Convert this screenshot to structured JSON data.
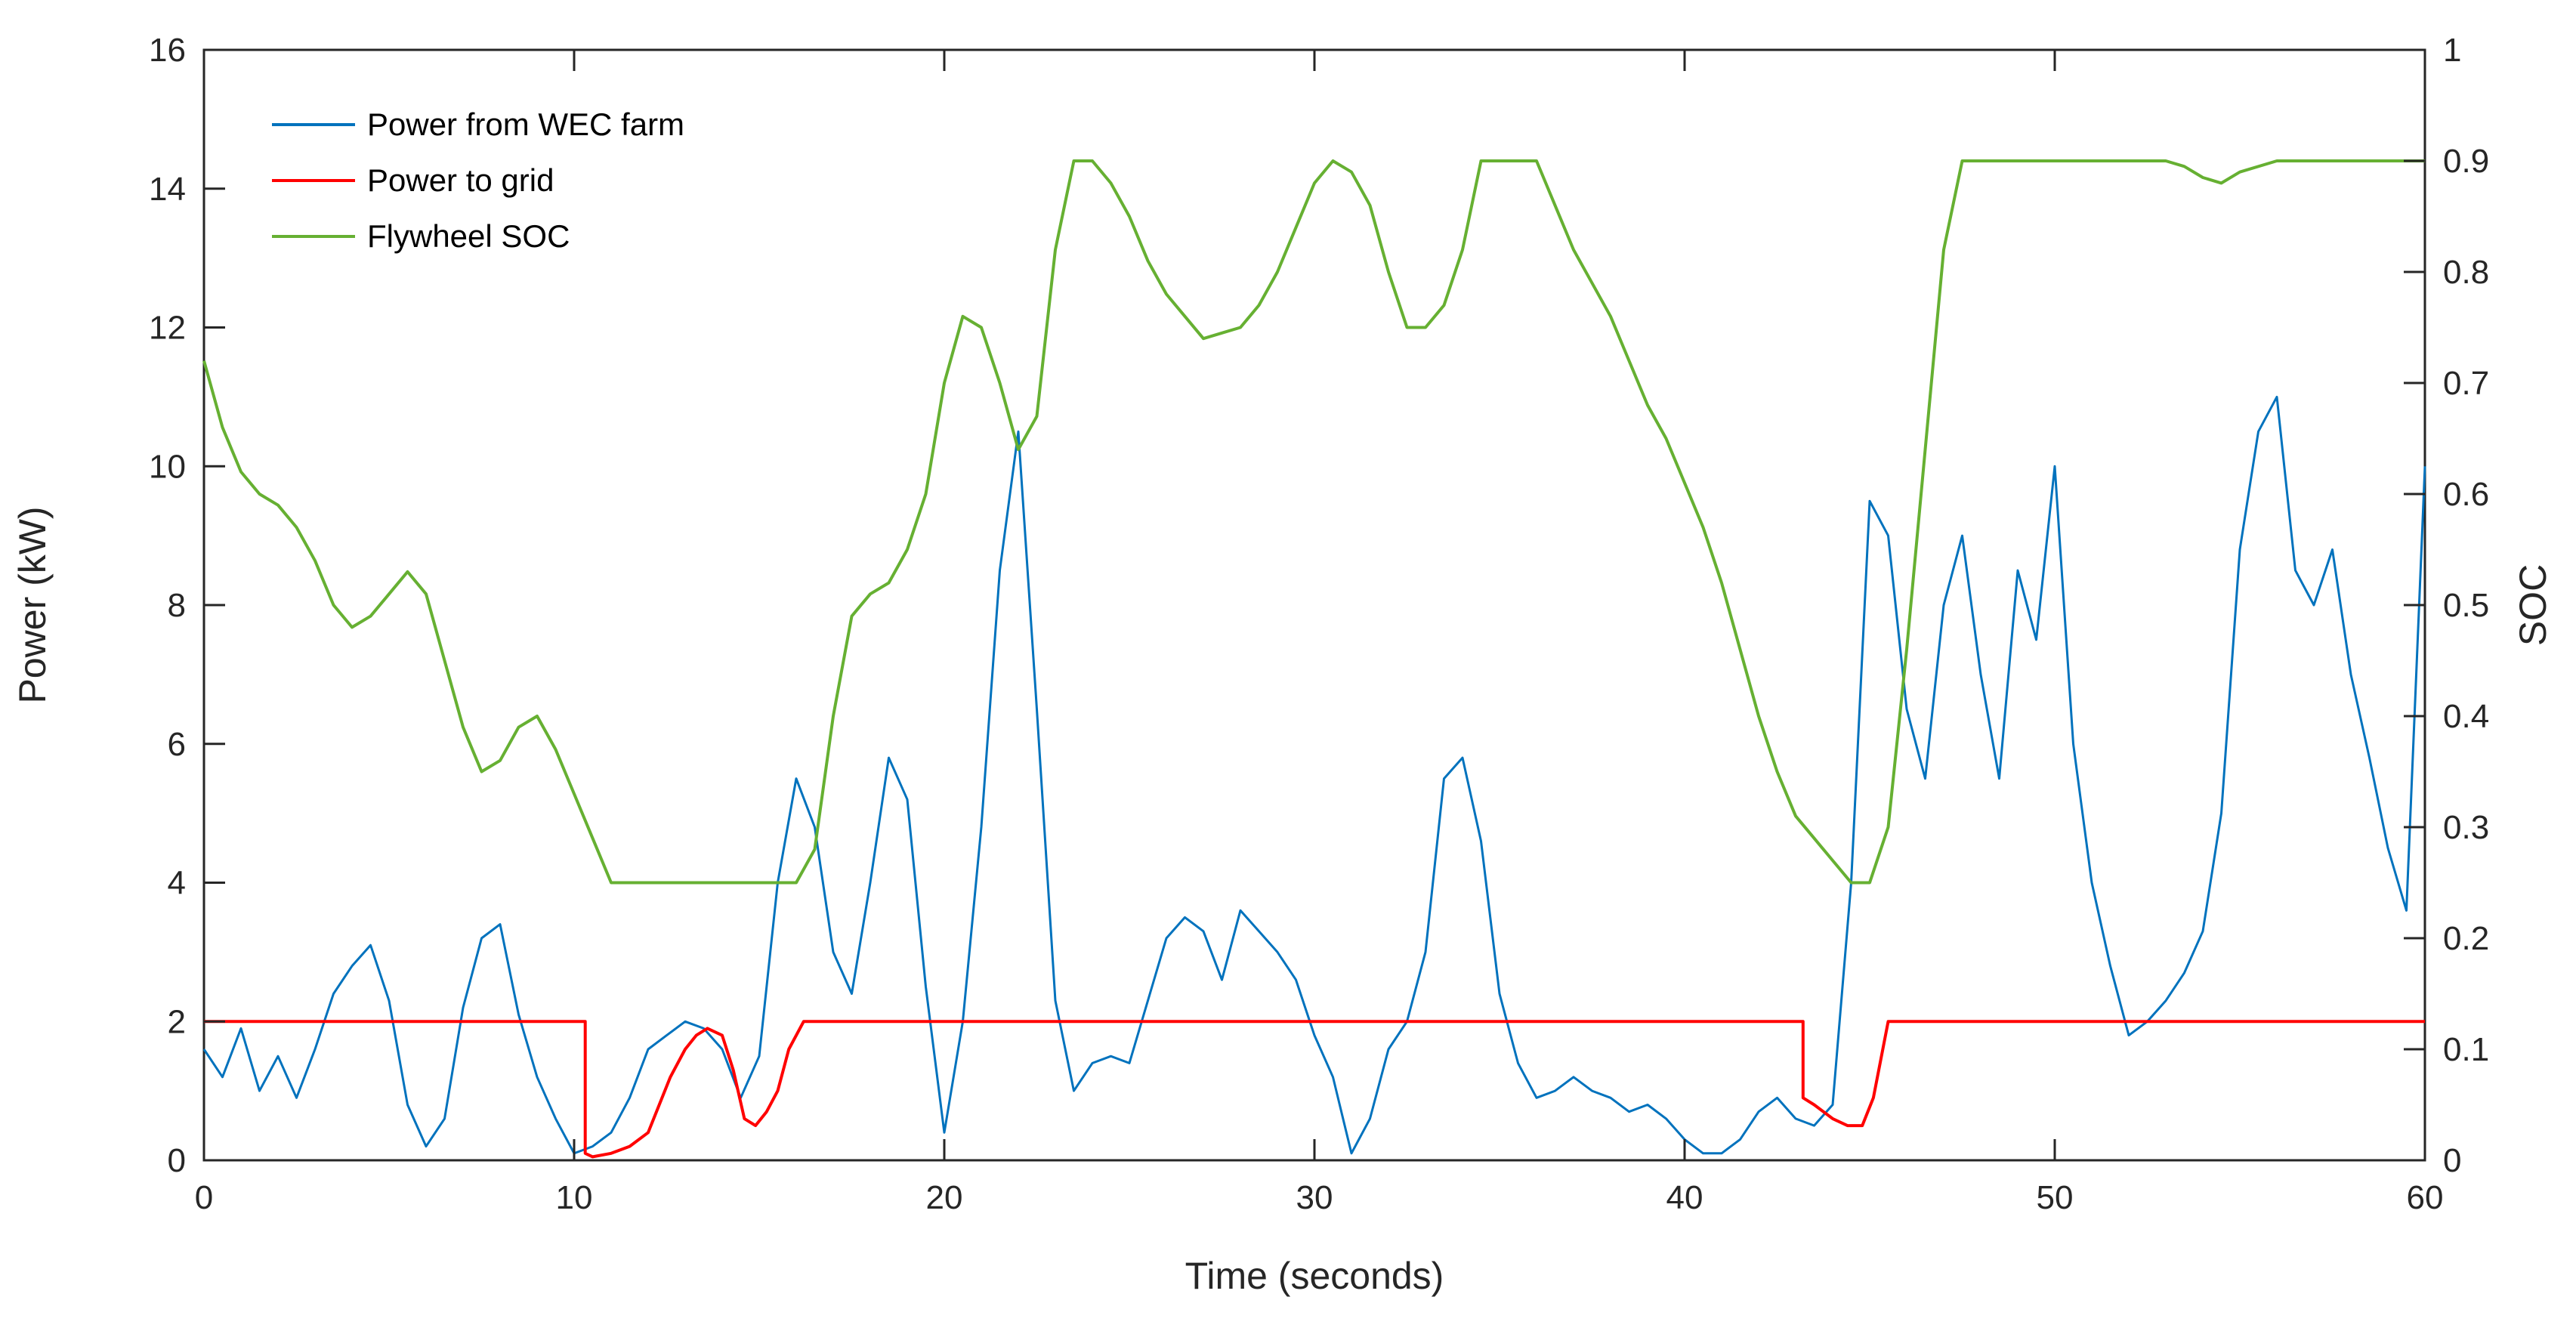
{
  "chart_data": {
    "type": "line",
    "title": "",
    "xlabel": "Time (seconds)",
    "ylabel": "Power (kW)",
    "y2label": "SOC",
    "xlim": [
      0,
      60
    ],
    "ylim": [
      0,
      16
    ],
    "y2lim": [
      0,
      1
    ],
    "xticks": [
      "0",
      "10",
      "20",
      "30",
      "40",
      "50",
      "60"
    ],
    "yticks": [
      "0",
      "2",
      "4",
      "6",
      "8",
      "10",
      "12",
      "14",
      "16"
    ],
    "y2ticks": [
      "0",
      "0.1",
      "0.2",
      "0.3",
      "0.4",
      "0.5",
      "0.6",
      "0.7",
      "0.8",
      "0.9",
      "1"
    ],
    "grid": false,
    "legend_position": "top-left",
    "colors": {
      "wec": "#0072BD",
      "grid": "#FF0000",
      "soc": "#66B032",
      "y2axis": "#66B032",
      "axis": "#262626"
    },
    "series": [
      {
        "name": "Power from WEC farm",
        "axis": "left",
        "x": [
          0,
          0.5,
          1,
          1.5,
          2,
          2.5,
          3,
          3.5,
          4,
          4.5,
          5,
          5.5,
          6,
          6.5,
          7,
          7.5,
          8,
          8.5,
          9,
          9.5,
          10,
          10.5,
          11,
          11.5,
          12,
          12.5,
          13,
          13.5,
          14,
          14.5,
          15,
          15.5,
          16,
          16.5,
          17,
          17.5,
          18,
          18.5,
          19,
          19.5,
          20,
          20.5,
          21,
          21.5,
          22,
          22.5,
          23,
          23.5,
          24,
          24.5,
          25,
          25.5,
          26,
          26.5,
          27,
          27.5,
          28,
          28.5,
          29,
          29.5,
          30,
          30.5,
          31,
          31.5,
          32,
          32.5,
          33,
          33.5,
          34,
          34.5,
          35,
          35.5,
          36,
          36.5,
          37,
          37.5,
          38,
          38.5,
          39,
          39.5,
          40,
          40.5,
          41,
          41.5,
          42,
          42.5,
          43,
          43.5,
          44,
          44.5,
          45,
          45.5,
          46,
          46.5,
          47,
          47.5,
          48,
          48.5,
          49,
          49.5,
          50,
          50.5,
          51,
          51.5,
          52,
          52.5,
          53,
          53.5,
          54,
          54.5,
          55,
          55.5,
          56,
          56.5,
          57,
          57.5,
          58,
          58.5,
          59,
          59.5,
          60
        ],
        "values": [
          1.6,
          1.2,
          1.9,
          1.0,
          1.5,
          0.9,
          1.6,
          2.4,
          2.8,
          3.1,
          2.3,
          0.8,
          0.2,
          0.6,
          2.2,
          3.2,
          3.4,
          2.1,
          1.2,
          0.6,
          0.1,
          0.2,
          0.4,
          0.9,
          1.6,
          1.8,
          2.0,
          1.9,
          1.6,
          0.9,
          1.5,
          4.0,
          5.5,
          4.8,
          3.0,
          2.4,
          4.0,
          5.8,
          5.2,
          2.5,
          0.4,
          2.0,
          4.8,
          8.5,
          10.5,
          6.5,
          2.3,
          1.0,
          1.4,
          1.5,
          1.4,
          2.3,
          3.2,
          3.5,
          3.3,
          2.6,
          3.6,
          3.3,
          3.0,
          2.6,
          1.8,
          1.2,
          0.1,
          0.6,
          1.6,
          2.0,
          3.0,
          5.5,
          5.8,
          4.6,
          2.4,
          1.4,
          0.9,
          1.0,
          1.2,
          1.0,
          0.9,
          0.7,
          0.8,
          0.6,
          0.3,
          0.1,
          0.1,
          0.3,
          0.7,
          0.9,
          0.6,
          0.5,
          0.8,
          4.0,
          9.5,
          9.0,
          6.5,
          5.5,
          8.0,
          9.0,
          7.0,
          5.5,
          8.5,
          7.5,
          10.0,
          6.0,
          4.0,
          2.8,
          1.8,
          2.0,
          2.3,
          2.7,
          3.3,
          5.0,
          8.8,
          10.5,
          11.0,
          8.5,
          8.0,
          8.8,
          7.0,
          5.8,
          4.5,
          3.6,
          10.0
        ]
      },
      {
        "name": "Power to grid",
        "axis": "left",
        "x": [
          0,
          10.3,
          10.3,
          10.5,
          11,
          11.5,
          12,
          12.3,
          12.6,
          13,
          13.3,
          13.6,
          14,
          14.3,
          14.6,
          14.9,
          15.2,
          15.5,
          15.8,
          16.2,
          16.6,
          20,
          30,
          40,
          43.2,
          43.2,
          43.5,
          44,
          44.4,
          44.8,
          45.1,
          45.5,
          50,
          55,
          60
        ],
        "values": [
          2,
          2,
          0.1,
          0.05,
          0.1,
          0.2,
          0.4,
          0.8,
          1.2,
          1.6,
          1.8,
          1.9,
          1.8,
          1.3,
          0.6,
          0.5,
          0.7,
          1.0,
          1.6,
          2,
          2,
          2,
          2,
          2,
          2,
          0.9,
          0.8,
          0.6,
          0.5,
          0.5,
          0.9,
          2,
          2,
          2,
          2
        ]
      },
      {
        "name": "Flywheel SOC",
        "axis": "right",
        "x": [
          0,
          0.5,
          1,
          1.5,
          2,
          2.5,
          3,
          3.5,
          4,
          4.5,
          5,
          5.5,
          6,
          6.5,
          7,
          7.5,
          8,
          8.5,
          9,
          9.5,
          10,
          10.5,
          11,
          12,
          13,
          14,
          15,
          16,
          16.5,
          17,
          17.5,
          18,
          18.5,
          19,
          19.5,
          20,
          20.5,
          21,
          21.5,
          22,
          22.5,
          23,
          23.5,
          24,
          24.5,
          25,
          25.5,
          26,
          26.5,
          27,
          27.5,
          28,
          28.5,
          29,
          29.5,
          30,
          30.5,
          31,
          31.5,
          32,
          32.5,
          33,
          33.5,
          34,
          34.5,
          35,
          35.5,
          36,
          36.5,
          37,
          37.5,
          38,
          38.5,
          39,
          39.5,
          40,
          40.5,
          41,
          41.5,
          42,
          42.5,
          43,
          43.5,
          44,
          44.5,
          45,
          45.5,
          46,
          46.5,
          47,
          47.5,
          48,
          49,
          50,
          51,
          52,
          53,
          53.5,
          54,
          54.5,
          55,
          56,
          57,
          58,
          59,
          60
        ],
        "values": [
          0.72,
          0.66,
          0.62,
          0.6,
          0.59,
          0.57,
          0.54,
          0.5,
          0.48,
          0.49,
          0.51,
          0.53,
          0.51,
          0.45,
          0.39,
          0.35,
          0.36,
          0.39,
          0.4,
          0.37,
          0.33,
          0.29,
          0.25,
          0.25,
          0.25,
          0.25,
          0.25,
          0.25,
          0.28,
          0.4,
          0.49,
          0.51,
          0.52,
          0.55,
          0.6,
          0.7,
          0.76,
          0.75,
          0.7,
          0.64,
          0.67,
          0.82,
          0.9,
          0.9,
          0.88,
          0.85,
          0.81,
          0.78,
          0.76,
          0.74,
          0.745,
          0.75,
          0.77,
          0.8,
          0.84,
          0.88,
          0.9,
          0.89,
          0.86,
          0.8,
          0.75,
          0.75,
          0.77,
          0.82,
          0.9,
          0.9,
          0.9,
          0.9,
          0.86,
          0.82,
          0.79,
          0.76,
          0.72,
          0.68,
          0.65,
          0.61,
          0.57,
          0.52,
          0.46,
          0.4,
          0.35,
          0.31,
          0.29,
          0.27,
          0.25,
          0.25,
          0.3,
          0.46,
          0.64,
          0.82,
          0.9,
          0.9,
          0.9,
          0.9,
          0.9,
          0.9,
          0.9,
          0.895,
          0.885,
          0.88,
          0.89,
          0.9,
          0.9,
          0.9,
          0.9,
          0.9
        ]
      }
    ]
  }
}
